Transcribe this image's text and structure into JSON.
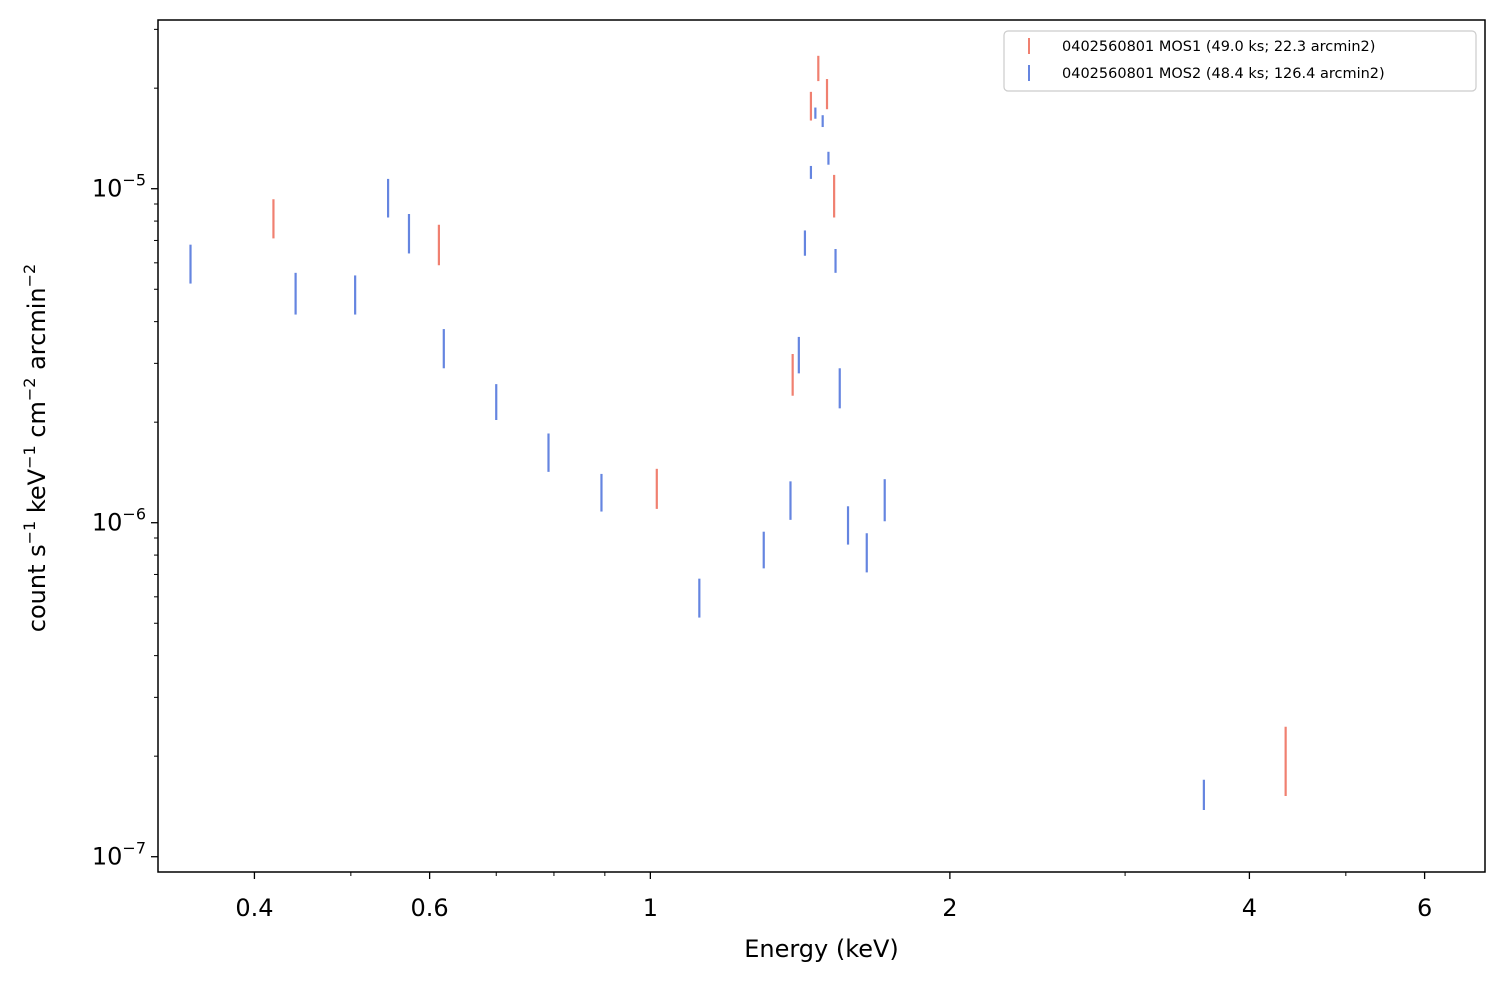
{
  "chart_data": {
    "type": "scatter",
    "xlabel": "Energy (keV)",
    "ylabel_parts": [
      "count s",
      "−1",
      " keV",
      "−1",
      " cm",
      "−2",
      " arcmin",
      "−2"
    ],
    "x_scale": "log",
    "y_scale": "log",
    "xlim": [
      0.32,
      6.9
    ],
    "ylim": [
      9e-08,
      3.2e-05
    ],
    "x_ticks": [
      {
        "value": 0.4,
        "label": "0.4"
      },
      {
        "value": 0.6,
        "label": "0.6"
      },
      {
        "value": 1,
        "label": "1"
      },
      {
        "value": 2,
        "label": "2"
      },
      {
        "value": 4,
        "label": "4"
      },
      {
        "value": 6,
        "label": "6"
      }
    ],
    "y_ticks": [
      {
        "value": 1e-05,
        "base": "10",
        "exp": "−5"
      },
      {
        "value": 1e-06,
        "base": "10",
        "exp": "−6"
      },
      {
        "value": 1e-07,
        "base": "10",
        "exp": "−7"
      }
    ],
    "grid": false,
    "legend_position": "top-right",
    "series": [
      {
        "name": "0402560801 MOS1 (49.0 ks; 22.3 arcmin2)",
        "color": "#f08070",
        "points": [
          {
            "x": 0.418,
            "ylo": 7.1e-06,
            "yhi": 9.3e-06
          },
          {
            "x": 0.613,
            "ylo": 5.9e-06,
            "yhi": 7.8e-06
          },
          {
            "x": 1.015,
            "ylo": 1.1e-06,
            "yhi": 1.45e-06
          },
          {
            "x": 1.39,
            "ylo": 2.4e-06,
            "yhi": 3.2e-06
          },
          {
            "x": 1.45,
            "ylo": 1.6e-05,
            "yhi": 1.95e-05
          },
          {
            "x": 1.475,
            "ylo": 2.1e-05,
            "yhi": 2.5e-05
          },
          {
            "x": 1.505,
            "ylo": 1.73e-05,
            "yhi": 2.13e-05
          },
          {
            "x": 1.53,
            "ylo": 8.2e-06,
            "yhi": 1.1e-05
          },
          {
            "x": 4.35,
            "ylo": 1.52e-07,
            "yhi": 2.45e-07
          }
        ]
      },
      {
        "name": "0402560801 MOS2 (48.4 ks; 126.4 arcmin2)",
        "color": "#6585e0",
        "points": [
          {
            "x": 0.345,
            "ylo": 5.2e-06,
            "yhi": 6.8e-06
          },
          {
            "x": 0.44,
            "ylo": 4.2e-06,
            "yhi": 5.6e-06
          },
          {
            "x": 0.505,
            "ylo": 4.2e-06,
            "yhi": 5.5e-06
          },
          {
            "x": 0.545,
            "ylo": 8.2e-06,
            "yhi": 1.07e-05
          },
          {
            "x": 0.572,
            "ylo": 6.4e-06,
            "yhi": 8.4e-06
          },
          {
            "x": 0.62,
            "ylo": 2.9e-06,
            "yhi": 3.8e-06
          },
          {
            "x": 0.7,
            "ylo": 2.03e-06,
            "yhi": 2.6e-06
          },
          {
            "x": 0.79,
            "ylo": 1.42e-06,
            "yhi": 1.85e-06
          },
          {
            "x": 0.893,
            "ylo": 1.08e-06,
            "yhi": 1.4e-06
          },
          {
            "x": 1.12,
            "ylo": 5.2e-07,
            "yhi": 6.8e-07
          },
          {
            "x": 1.3,
            "ylo": 7.3e-07,
            "yhi": 9.4e-07
          },
          {
            "x": 1.383,
            "ylo": 1.02e-06,
            "yhi": 1.33e-06
          },
          {
            "x": 1.41,
            "ylo": 2.8e-06,
            "yhi": 3.6e-06
          },
          {
            "x": 1.43,
            "ylo": 6.3e-06,
            "yhi": 7.5e-06
          },
          {
            "x": 1.45,
            "ylo": 1.07e-05,
            "yhi": 1.17e-05
          },
          {
            "x": 1.465,
            "ylo": 1.62e-05,
            "yhi": 1.75e-05
          },
          {
            "x": 1.49,
            "ylo": 1.53e-05,
            "yhi": 1.66e-05
          },
          {
            "x": 1.51,
            "ylo": 1.18e-05,
            "yhi": 1.29e-05
          },
          {
            "x": 1.535,
            "ylo": 5.6e-06,
            "yhi": 6.6e-06
          },
          {
            "x": 1.55,
            "ylo": 2.2e-06,
            "yhi": 2.9e-06
          },
          {
            "x": 1.58,
            "ylo": 8.6e-07,
            "yhi": 1.12e-06
          },
          {
            "x": 1.65,
            "ylo": 7.1e-07,
            "yhi": 9.3e-07
          },
          {
            "x": 1.72,
            "ylo": 1.01e-06,
            "yhi": 1.35e-06
          },
          {
            "x": 3.6,
            "ylo": 1.38e-07,
            "yhi": 1.7e-07
          }
        ]
      }
    ]
  }
}
